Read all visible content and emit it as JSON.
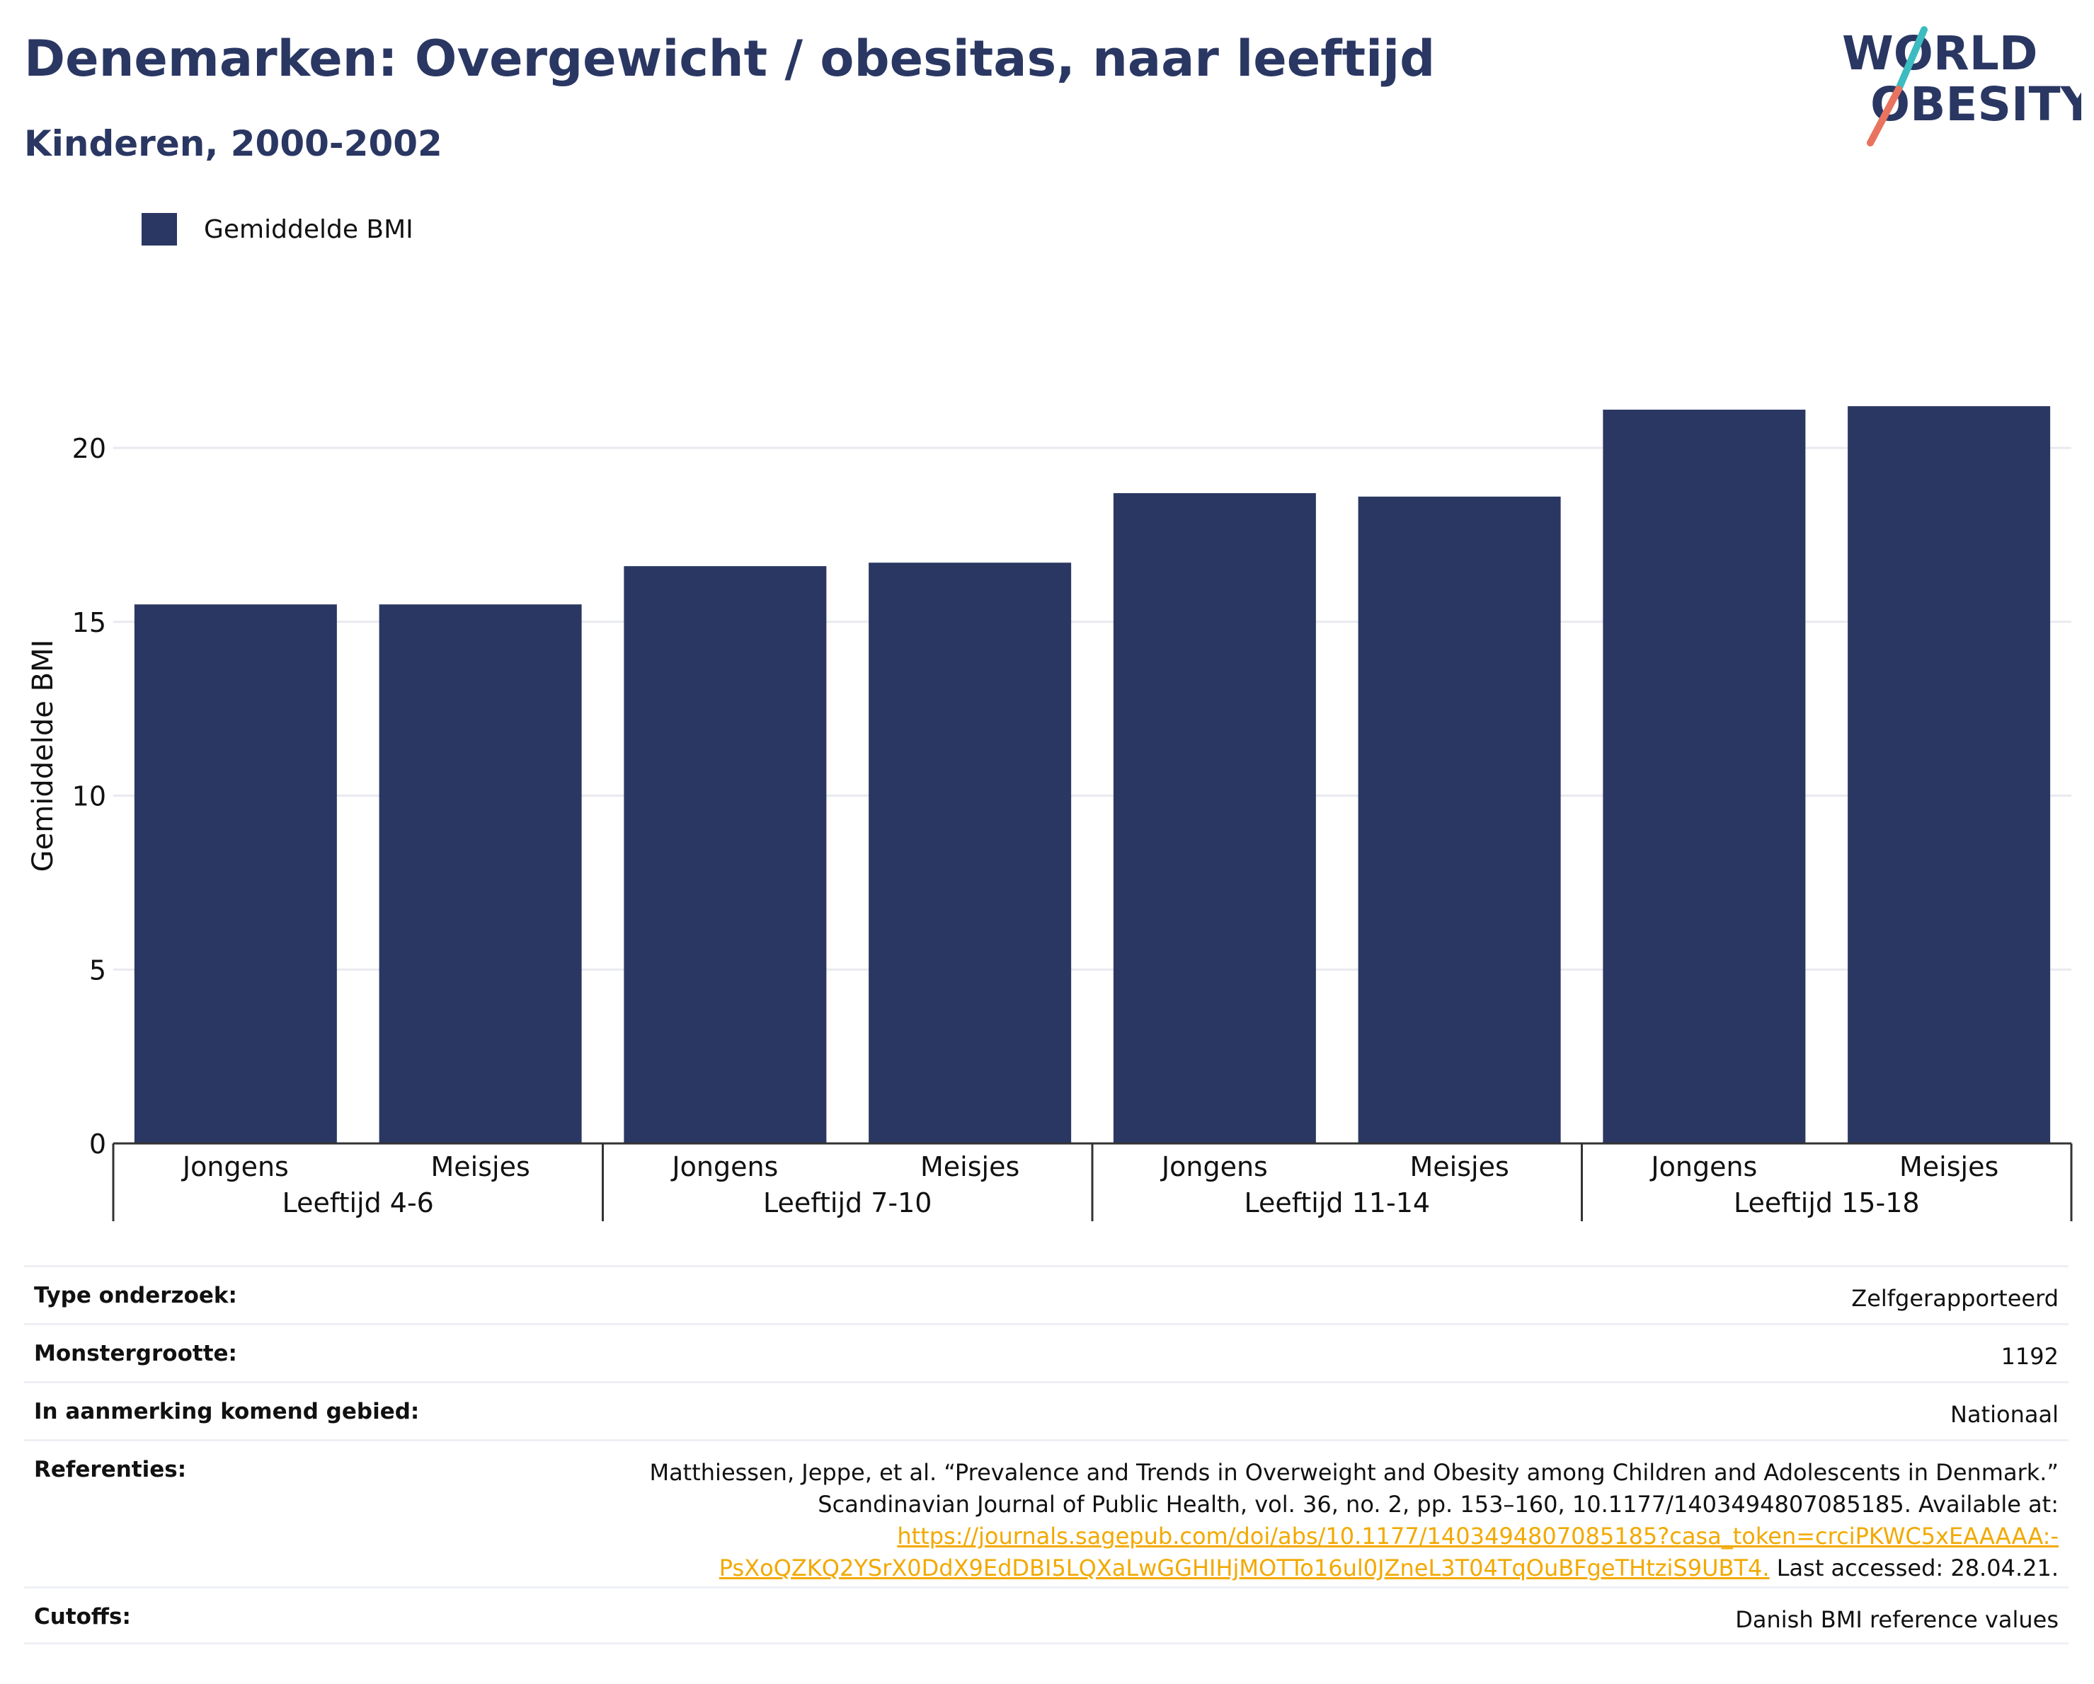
{
  "header": {
    "title": "Denemarken: Overgewicht / obesitas, naar leeftijd",
    "subtitle": "Kinderen, 2000-2002"
  },
  "logo": {
    "line1": "WORLD",
    "line2": "OBESITY"
  },
  "colors": {
    "bar": "#2a3763",
    "title": "#2a3763",
    "link": "#f2a900",
    "grid": "#e8eaef",
    "accent_teal": "#3cbcc0",
    "accent_coral": "#e8735e"
  },
  "legend": {
    "label": "Gemiddelde BMI"
  },
  "chart_data": {
    "type": "bar",
    "ylabel": "Gemiddelde BMI",
    "ylim": [
      0,
      22.3
    ],
    "yticks": [
      0,
      5,
      10,
      15,
      20
    ],
    "grid": true,
    "legend_position": "top-left",
    "groups": [
      {
        "label": "Leeftijd 4-6",
        "categories": [
          "Jongens",
          "Meisjes"
        ],
        "values": [
          15.5,
          15.5
        ]
      },
      {
        "label": "Leeftijd 7-10",
        "categories": [
          "Jongens",
          "Meisjes"
        ],
        "values": [
          16.6,
          16.7
        ]
      },
      {
        "label": "Leeftijd 11-14",
        "categories": [
          "Jongens",
          "Meisjes"
        ],
        "values": [
          18.7,
          18.6
        ]
      },
      {
        "label": "Leeftijd 15-18",
        "categories": [
          "Jongens",
          "Meisjes"
        ],
        "values": [
          21.1,
          21.2
        ]
      }
    ],
    "series": [
      {
        "name": "Gemiddelde BMI"
      }
    ]
  },
  "meta": [
    {
      "label": "Type onderzoek:",
      "value": "Zelfgerapporteerd"
    },
    {
      "label": "Monstergrootte:",
      "value": "1192"
    },
    {
      "label": "In aanmerking komend gebied:",
      "value": "Nationaal"
    },
    {
      "label": "Referenties:",
      "ref_line1": "Matthiessen, Jeppe, et al. “Prevalence and Trends in Overweight and Obesity among Children and Adolescents in Denmark.”",
      "ref_line2": "Scandinavian Journal of Public Health, vol. 36, no. 2, pp. 153–160, 10.1177/1403494807085185. Available at:",
      "ref_link1": "https://journals.sagepub.com/doi/abs/10.1177/1403494807085185?casa_token=crciPKWC5xEAAAAA:-",
      "ref_link2": "PsXoQZKQ2YSrX0DdX9EdDBI5LQXaLwGGHIHjMOTTo16ul0JZneL3T04TqOuBFgeTHtziS9UBT4.",
      "ref_tail": " Last accessed: 28.04.21."
    },
    {
      "label": "Cutoffs:",
      "value": "Danish BMI reference values"
    }
  ]
}
